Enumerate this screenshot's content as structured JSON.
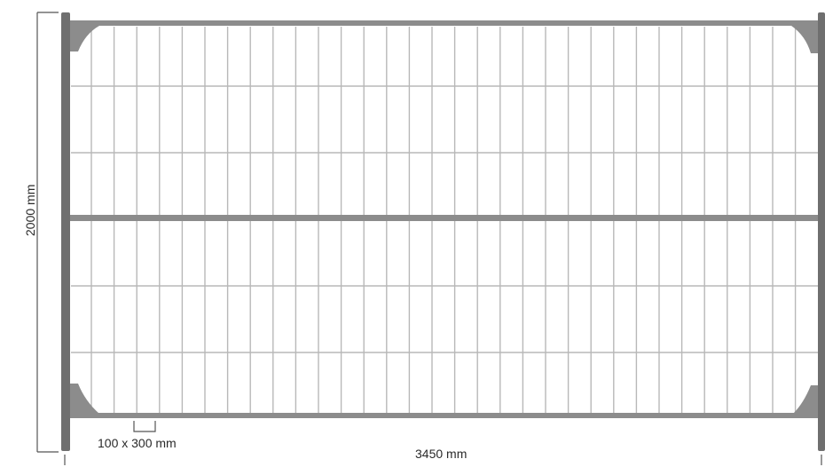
{
  "diagram": {
    "height_label": "2000 mm",
    "width_label": "3450 mm",
    "mesh_label": "100 x 300 mm",
    "colors": {
      "frame": "#8c8c8c",
      "frame_dark": "#6f6f6f",
      "wire": "#b8b8b8",
      "dimension_line": "#555555",
      "text": "#2a2a2a"
    }
  }
}
